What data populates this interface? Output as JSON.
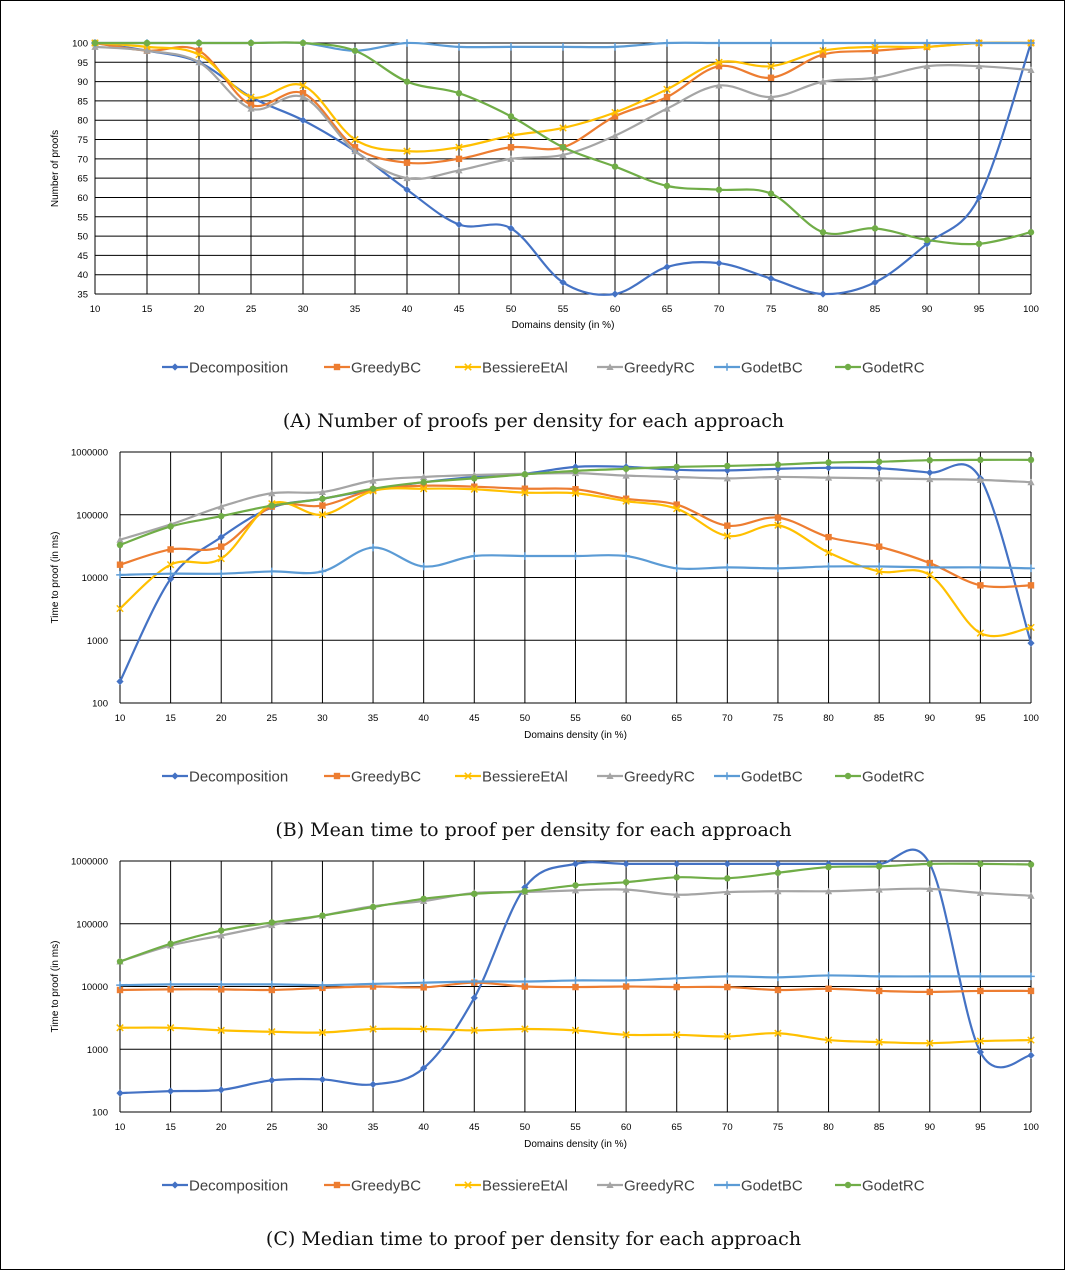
{
  "chart_data": [
    {
      "type": "line",
      "caption": "(A) Number of proofs per density for each approach",
      "xlabel": "Domains density (in %)",
      "ylabel": "Number of proofs",
      "log": false,
      "ylim": [
        35,
        100
      ],
      "yticks": [
        35,
        40,
        45,
        50,
        55,
        60,
        65,
        70,
        75,
        80,
        85,
        90,
        95,
        100
      ],
      "x": [
        10,
        15,
        20,
        25,
        30,
        35,
        40,
        45,
        50,
        55,
        60,
        65,
        70,
        75,
        80,
        85,
        90,
        95,
        100
      ],
      "series": [
        {
          "name": "Decomposition",
          "values": [
            100,
            98,
            95,
            86,
            80,
            72,
            62,
            53,
            52,
            38,
            35,
            42,
            43,
            39,
            35,
            38,
            48,
            60,
            100
          ]
        },
        {
          "name": "GreedyBC",
          "values": [
            100,
            98,
            98,
            84,
            87,
            73,
            69,
            70,
            73,
            73,
            81,
            86,
            94,
            91,
            97,
            98,
            99,
            100,
            100
          ]
        },
        {
          "name": "BessiereEtAl",
          "values": [
            100,
            99,
            97,
            86,
            89,
            75,
            72,
            73,
            76,
            78,
            82,
            88,
            95,
            94,
            98,
            99,
            99,
            100,
            100
          ]
        },
        {
          "name": "GreedyRC",
          "values": [
            99,
            98,
            95,
            83,
            86,
            72,
            65,
            67,
            70,
            71,
            76,
            83,
            89,
            86,
            90,
            91,
            94,
            94,
            93
          ]
        },
        {
          "name": "GodetBC",
          "values": [
            100,
            100,
            100,
            100,
            100,
            98,
            100,
            99,
            99,
            99,
            99,
            100,
            100,
            100,
            100,
            100,
            100,
            100,
            100
          ]
        },
        {
          "name": "GodetRC",
          "values": [
            100,
            100,
            100,
            100,
            100,
            98,
            90,
            87,
            81,
            73,
            68,
            63,
            62,
            61,
            51,
            52,
            49,
            48,
            51
          ]
        }
      ]
    },
    {
      "type": "line",
      "caption": "(B) Mean time to proof per density for each approach",
      "xlabel": "Domains density (in %)",
      "ylabel": "Time to proof (in ms)",
      "log": true,
      "ylim": [
        100,
        1000000
      ],
      "yticks": [
        100,
        1000,
        10000,
        100000,
        1000000
      ],
      "x": [
        10,
        15,
        20,
        25,
        30,
        35,
        40,
        45,
        50,
        55,
        60,
        65,
        70,
        75,
        80,
        85,
        90,
        95,
        100
      ],
      "series": [
        {
          "name": "Decomposition",
          "values": [
            220,
            9500,
            44000,
            130000,
            180000,
            250000,
            330000,
            400000,
            450000,
            580000,
            580000,
            520000,
            510000,
            540000,
            560000,
            550000,
            470000,
            380000,
            900
          ]
        },
        {
          "name": "GreedyBC",
          "values": [
            16000,
            28000,
            31000,
            135000,
            140000,
            250000,
            290000,
            280000,
            260000,
            255000,
            180000,
            145000,
            67000,
            90000,
            44000,
            31000,
            17000,
            7500,
            7500
          ]
        },
        {
          "name": "BessiereEtAl",
          "values": [
            3200,
            16000,
            20000,
            150000,
            100000,
            240000,
            260000,
            255000,
            225000,
            220000,
            165000,
            125000,
            46000,
            68000,
            25000,
            12500,
            11000,
            1300,
            1600
          ]
        },
        {
          "name": "GreedyRC",
          "values": [
            40000,
            70000,
            135000,
            220000,
            230000,
            350000,
            400000,
            430000,
            450000,
            460000,
            420000,
            400000,
            380000,
            400000,
            390000,
            380000,
            370000,
            360000,
            330000
          ]
        },
        {
          "name": "GodetBC",
          "values": [
            11000,
            11500,
            11500,
            12500,
            12500,
            30000,
            15000,
            22000,
            22000,
            22000,
            22000,
            14000,
            14500,
            14000,
            15000,
            15000,
            14500,
            14500,
            14000
          ]
        },
        {
          "name": "GodetRC",
          "values": [
            33000,
            65000,
            95000,
            140000,
            180000,
            260000,
            330000,
            380000,
            440000,
            500000,
            540000,
            580000,
            600000,
            630000,
            680000,
            700000,
            740000,
            750000,
            750000
          ]
        }
      ]
    },
    {
      "type": "line",
      "caption": "(C) Median time to proof per density for each approach",
      "xlabel": "Domains density (in %)",
      "ylabel": "Time to proof (in ms)",
      "log": true,
      "ylim": [
        100,
        1000000
      ],
      "yticks": [
        100,
        1000,
        10000,
        100000,
        1000000
      ],
      "x": [
        10,
        15,
        20,
        25,
        30,
        35,
        40,
        45,
        50,
        55,
        60,
        65,
        70,
        75,
        80,
        85,
        90,
        95,
        100
      ],
      "series": [
        {
          "name": "Decomposition",
          "values": [
            200,
            215,
            225,
            320,
            330,
            275,
            500,
            6600,
            380000,
            900000,
            900000,
            900000,
            900000,
            900000,
            900000,
            900000,
            900000,
            900,
            800
          ]
        },
        {
          "name": "GreedyBC",
          "values": [
            8800,
            9000,
            9000,
            8800,
            9500,
            10000,
            9700,
            11500,
            10000,
            9800,
            10000,
            9800,
            9800,
            8800,
            9200,
            8500,
            8200,
            8500,
            8500
          ]
        },
        {
          "name": "BessiereEtAl",
          "values": [
            2200,
            2200,
            2000,
            1900,
            1850,
            2100,
            2100,
            2000,
            2100,
            2000,
            1700,
            1700,
            1600,
            1800,
            1400,
            1300,
            1250,
            1350,
            1400
          ]
        },
        {
          "name": "GreedyRC",
          "values": [
            25000,
            45000,
            65000,
            95000,
            135000,
            190000,
            230000,
            310000,
            320000,
            340000,
            350000,
            290000,
            320000,
            330000,
            330000,
            350000,
            360000,
            310000,
            280000
          ]
        },
        {
          "name": "GodetBC",
          "values": [
            10500,
            10800,
            10800,
            10800,
            10500,
            11000,
            11500,
            12000,
            12000,
            12500,
            12500,
            13500,
            14500,
            14000,
            15000,
            14500,
            14500,
            14500,
            14500
          ]
        },
        {
          "name": "GodetRC",
          "values": [
            25000,
            48000,
            78000,
            105000,
            135000,
            185000,
            250000,
            300000,
            330000,
            410000,
            460000,
            550000,
            530000,
            650000,
            800000,
            820000,
            900000,
            900000,
            880000
          ]
        }
      ]
    }
  ],
  "legend": {
    "items": [
      {
        "name": "Decomposition",
        "color": "#4472c4",
        "marker": "diamond"
      },
      {
        "name": "GreedyBC",
        "color": "#ed7d31",
        "marker": "square"
      },
      {
        "name": "BessiereEtAl",
        "color": "#ffc000",
        "marker": "x"
      },
      {
        "name": "GreedyRC",
        "color": "#a5a5a5",
        "marker": "triangle"
      },
      {
        "name": "GodetBC",
        "color": "#5b9bd5",
        "marker": "plus"
      },
      {
        "name": "GodetRC",
        "color": "#70ad47",
        "marker": "circle"
      }
    ]
  }
}
